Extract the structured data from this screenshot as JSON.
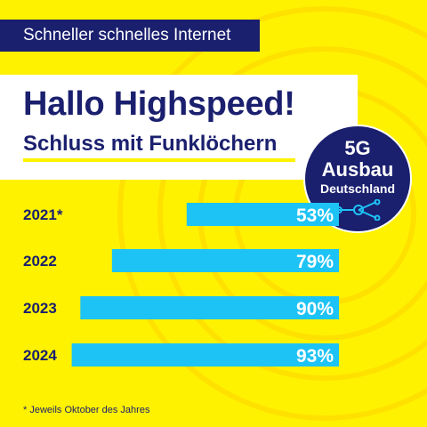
{
  "tagline": "Schneller schnelles Internet",
  "headline": "Hallo Highspeed!",
  "subheadline": "Schluss mit Funklöchern",
  "badge": {
    "line1": "5G",
    "line2": "Ausbau",
    "line3": "Deutschland",
    "icon": "network-icon"
  },
  "colors": {
    "background": "#fff200",
    "navy": "#1a1f6e",
    "bar": "#1ec3f5",
    "white": "#ffffff"
  },
  "chart_data": {
    "type": "bar",
    "orientation": "horizontal",
    "categories": [
      "2021*",
      "2022",
      "2023",
      "2024"
    ],
    "values": [
      53,
      79,
      90,
      93
    ],
    "value_labels": [
      "53%",
      "79%",
      "90%",
      "93%"
    ],
    "unit": "%",
    "xlim": [
      0,
      100
    ]
  },
  "footnote": "* Jeweils Oktober des Jahres"
}
